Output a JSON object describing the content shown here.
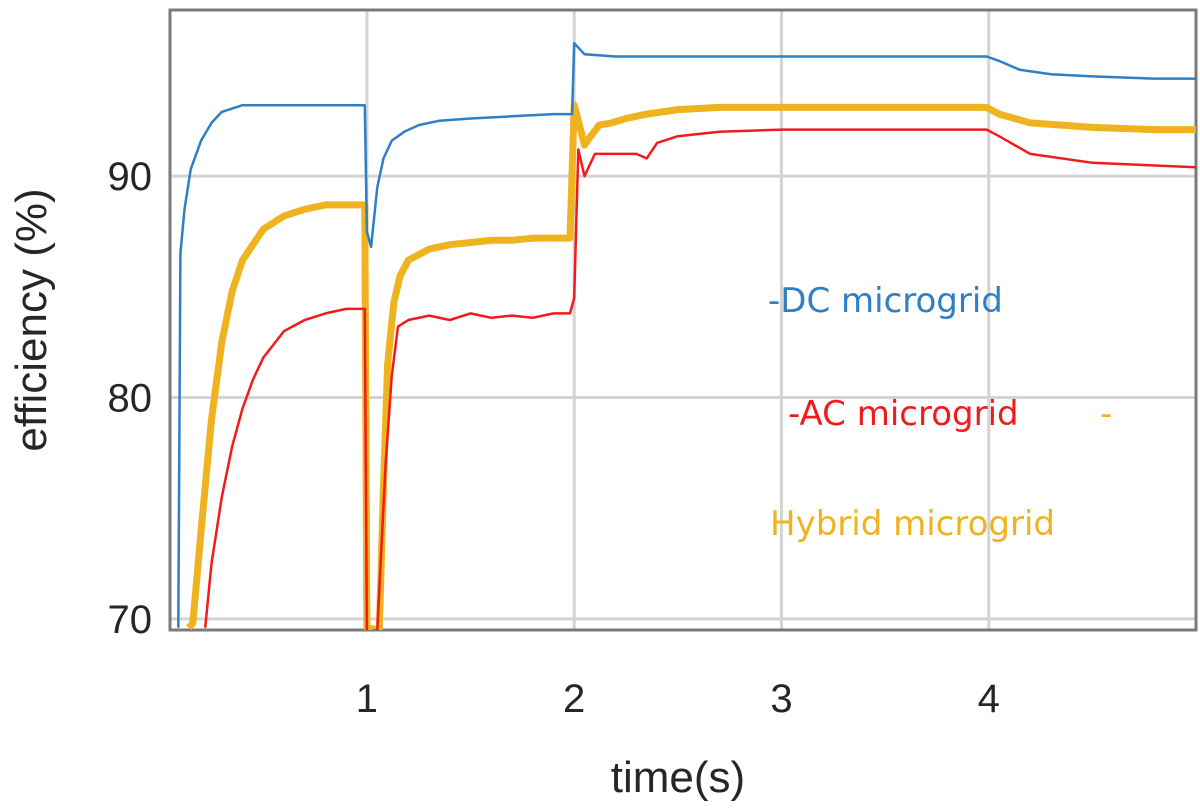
{
  "chart_data": {
    "type": "line",
    "title": "",
    "xlabel": "time(s)",
    "ylabel": "efficiency (%)",
    "xlim": [
      0.05,
      5.0
    ],
    "ylim": [
      69.5,
      97.5
    ],
    "x_ticks": [
      1,
      2,
      3,
      4
    ],
    "x_tick_labels": [
      "1",
      "2",
      "3",
      "4"
    ],
    "y_ticks": [
      70,
      80,
      90
    ],
    "y_tick_labels": [
      "70",
      "80",
      "90"
    ],
    "grid": true,
    "legend_placement": "right",
    "series": [
      {
        "name": "DC microgrid",
        "legend_text": "-DC microgrid",
        "color": "#2f7fc4",
        "x": [
          0.09,
          0.1,
          0.12,
          0.15,
          0.2,
          0.25,
          0.3,
          0.4,
          0.5,
          0.6,
          0.7,
          0.8,
          0.9,
          0.99,
          1.0,
          1.02,
          1.05,
          1.08,
          1.12,
          1.18,
          1.25,
          1.35,
          1.5,
          1.7,
          1.9,
          1.98,
          1.99,
          2.0,
          2.05,
          2.2,
          2.5,
          3.0,
          3.5,
          3.99,
          4.05,
          4.15,
          4.3,
          4.5,
          4.8,
          5.0
        ],
        "values": [
          69.6,
          86.5,
          88.5,
          90.3,
          91.6,
          92.4,
          92.9,
          93.2,
          93.2,
          93.2,
          93.2,
          93.2,
          93.2,
          93.2,
          87.5,
          86.8,
          89.5,
          90.8,
          91.6,
          92.0,
          92.3,
          92.5,
          92.6,
          92.7,
          92.8,
          92.8,
          92.8,
          96.0,
          95.5,
          95.4,
          95.4,
          95.4,
          95.4,
          95.4,
          95.2,
          94.8,
          94.6,
          94.5,
          94.4,
          94.4
        ]
      },
      {
        "name": "AC microgrid",
        "legend_text": "-AC microgrid",
        "color": "#f21b1b",
        "x": [
          0.22,
          0.25,
          0.3,
          0.35,
          0.4,
          0.45,
          0.5,
          0.6,
          0.7,
          0.8,
          0.9,
          0.99,
          1.0,
          1.05,
          1.09,
          1.12,
          1.15,
          1.2,
          1.3,
          1.4,
          1.5,
          1.6,
          1.7,
          1.8,
          1.9,
          1.98,
          2.0,
          2.02,
          2.05,
          2.1,
          2.2,
          2.3,
          2.35,
          2.4,
          2.5,
          2.7,
          3.0,
          3.5,
          3.99,
          4.05,
          4.2,
          4.5,
          5.0
        ],
        "values": [
          69.6,
          72.5,
          75.5,
          77.8,
          79.5,
          80.8,
          81.8,
          83.0,
          83.5,
          83.8,
          84.0,
          84.0,
          69.4,
          69.5,
          77.0,
          81.0,
          83.2,
          83.5,
          83.7,
          83.5,
          83.8,
          83.6,
          83.7,
          83.6,
          83.8,
          83.8,
          84.5,
          91.2,
          90.0,
          91.0,
          91.0,
          91.0,
          90.8,
          91.5,
          91.8,
          92.0,
          92.1,
          92.1,
          92.1,
          91.8,
          91.0,
          90.6,
          90.4
        ]
      },
      {
        "name": "Hybrid microgrid",
        "legend_text": "Hybrid microgrid",
        "legend_marker": "-",
        "color": "#eeb31f",
        "x": [
          0.14,
          0.16,
          0.2,
          0.25,
          0.3,
          0.35,
          0.4,
          0.5,
          0.6,
          0.7,
          0.8,
          0.9,
          0.99,
          1.0,
          1.06,
          1.08,
          1.1,
          1.13,
          1.16,
          1.2,
          1.3,
          1.4,
          1.5,
          1.6,
          1.7,
          1.8,
          1.9,
          1.98,
          2.0,
          2.02,
          2.05,
          2.08,
          2.12,
          2.18,
          2.25,
          2.35,
          2.5,
          2.7,
          3.0,
          3.5,
          3.99,
          4.05,
          4.2,
          4.5,
          4.8,
          5.0
        ],
        "values": [
          69.6,
          69.8,
          74.0,
          79.0,
          82.5,
          84.8,
          86.2,
          87.6,
          88.2,
          88.5,
          88.7,
          88.7,
          88.7,
          69.6,
          69.5,
          76.0,
          81.5,
          84.3,
          85.5,
          86.2,
          86.7,
          86.9,
          87.0,
          87.1,
          87.1,
          87.2,
          87.2,
          87.2,
          93.2,
          92.5,
          91.4,
          91.8,
          92.3,
          92.4,
          92.6,
          92.8,
          93.0,
          93.1,
          93.1,
          93.1,
          93.1,
          92.8,
          92.4,
          92.2,
          92.1,
          92.1
        ]
      }
    ]
  }
}
